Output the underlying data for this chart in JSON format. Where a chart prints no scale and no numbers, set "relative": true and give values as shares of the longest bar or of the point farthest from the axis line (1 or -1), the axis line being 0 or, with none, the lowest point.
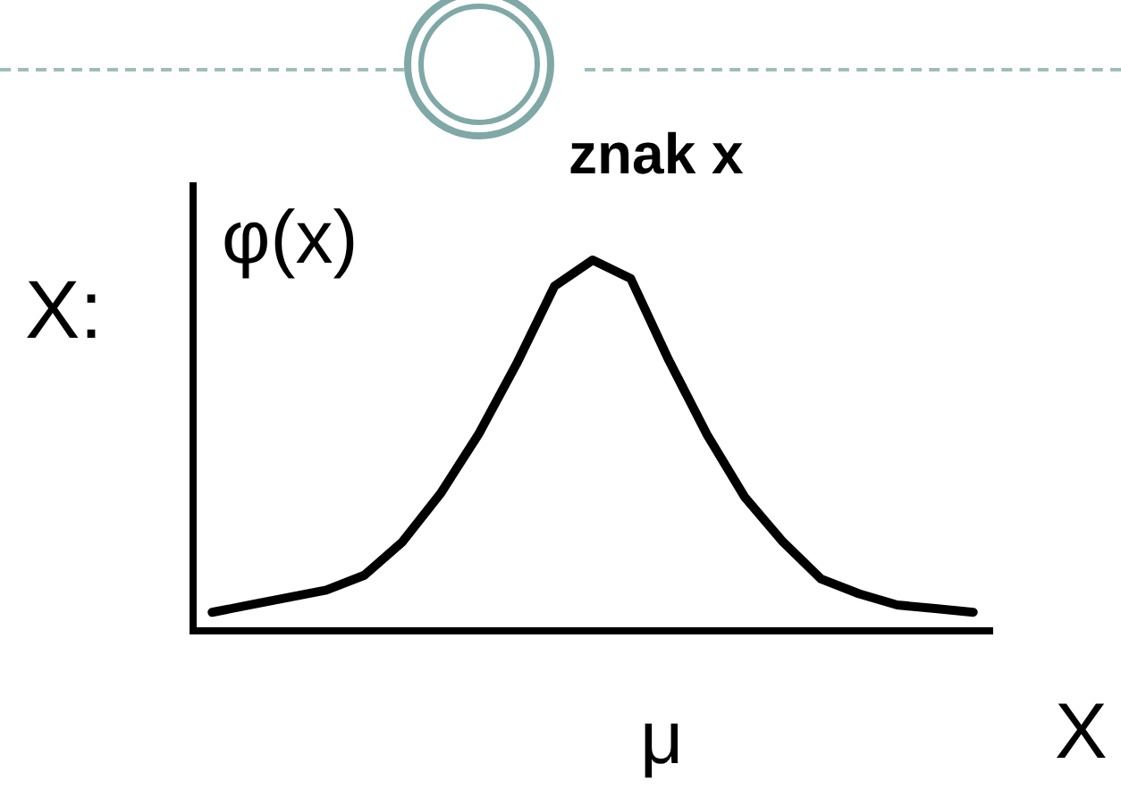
{
  "chart_data": {
    "type": "line",
    "relative": true,
    "ylabel": "φ(x)",
    "xlabel": "X",
    "categories": [
      null,
      null,
      null,
      null,
      null,
      null,
      null,
      null,
      null,
      null,
      null,
      null,
      null,
      null,
      null,
      null,
      null,
      null,
      null,
      null,
      null
    ],
    "values": [
      0.05,
      0.07,
      0.09,
      0.11,
      0.15,
      0.24,
      0.37,
      0.53,
      0.72,
      0.93,
      1,
      0.95,
      0.73,
      0.53,
      0.36,
      0.24,
      0.14,
      0.1,
      0.07,
      0.06,
      0.05
    ],
    "color": "#000000",
    "marker": "none",
    "line_style": "solid",
    "grid": false,
    "legend": false,
    "annotations": [
      "X:",
      "znak x",
      "μ"
    ]
  }
}
